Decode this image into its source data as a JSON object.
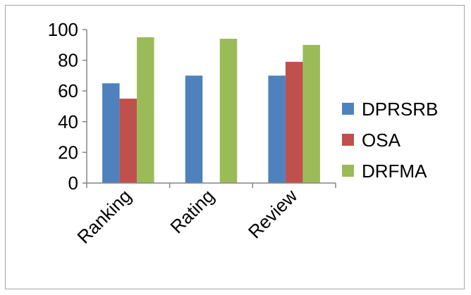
{
  "chart_data": {
    "type": "bar",
    "title": "",
    "xlabel": "",
    "ylabel": "",
    "categories": [
      "Ranking",
      "Rating",
      "Review"
    ],
    "series": [
      {
        "name": "DPRSRB",
        "color": "#4f81bd",
        "values": [
          65,
          70,
          70
        ]
      },
      {
        "name": "OSA",
        "color": "#c0504d",
        "values": [
          55,
          null,
          79
        ]
      },
      {
        "name": "DRFMA",
        "color": "#9bbb59",
        "values": [
          95,
          94,
          90
        ]
      }
    ],
    "ylim": [
      0,
      100
    ],
    "yticks": [
      0,
      20,
      40,
      60,
      80,
      100
    ],
    "grid": false,
    "legend_position": "right"
  }
}
